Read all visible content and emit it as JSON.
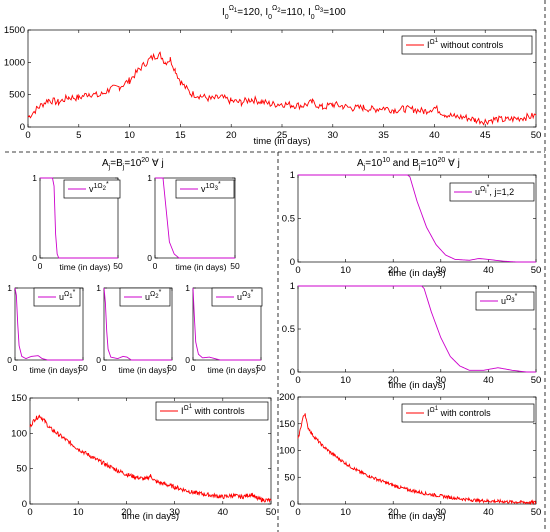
{
  "chart_data": [
    {
      "id": "top",
      "type": "line",
      "title": "I_0^Ω1=120, I_0^Ω2=110, I_0^Ω3=100",
      "xlabel": "time (in days)",
      "xlim": [
        0,
        50
      ],
      "ylim": [
        0,
        1500
      ],
      "xticks": [
        0,
        5,
        10,
        15,
        20,
        25,
        30,
        35,
        40,
        45,
        50
      ],
      "yticks": [
        0,
        500,
        1000,
        1500
      ],
      "legend": {
        "label": "I^Ω1 without controls",
        "position": "top-right"
      },
      "series": [
        {
          "color": "#ff0000",
          "noise": 55,
          "points": [
            [
              0,
              150
            ],
            [
              1,
              300
            ],
            [
              2,
              420
            ],
            [
              3,
              380
            ],
            [
              4,
              460
            ],
            [
              5,
              450
            ],
            [
              6,
              520
            ],
            [
              7,
              480
            ],
            [
              8,
              580
            ],
            [
              9,
              620
            ],
            [
              10,
              720
            ],
            [
              11,
              900
            ],
            [
              12,
              1050
            ],
            [
              12.5,
              1100
            ],
            [
              13,
              1120
            ],
            [
              13.5,
              1000
            ],
            [
              14,
              1050
            ],
            [
              14.5,
              880
            ],
            [
              15,
              700
            ],
            [
              16,
              520
            ],
            [
              17,
              480
            ],
            [
              18,
              430
            ],
            [
              19,
              460
            ],
            [
              20,
              400
            ],
            [
              21,
              380
            ],
            [
              22,
              430
            ],
            [
              23,
              390
            ],
            [
              24,
              350
            ],
            [
              25,
              360
            ],
            [
              26,
              340
            ],
            [
              27,
              330
            ],
            [
              28,
              380
            ],
            [
              29,
              300
            ],
            [
              30,
              350
            ],
            [
              31,
              320
            ],
            [
              32,
              290
            ],
            [
              33,
              300
            ],
            [
              34,
              270
            ],
            [
              35,
              300
            ],
            [
              36,
              260
            ],
            [
              37,
              280
            ],
            [
              38,
              270
            ],
            [
              39,
              240
            ],
            [
              40,
              300
            ],
            [
              41,
              200
            ],
            [
              42,
              160
            ],
            [
              43,
              150
            ],
            [
              44,
              110
            ],
            [
              45,
              90
            ],
            [
              46,
              120
            ],
            [
              47,
              110
            ],
            [
              48,
              130
            ],
            [
              49,
              150
            ],
            [
              50,
              180
            ]
          ]
        }
      ]
    },
    {
      "id": "v2",
      "type": "line",
      "xlabel": "time (in days)",
      "xlim": [
        0,
        50
      ],
      "ylim": [
        0,
        1
      ],
      "xticks": [
        0,
        50
      ],
      "yticks": [
        0,
        1
      ],
      "legend": {
        "label": "v^1Ω2*"
      },
      "series": [
        {
          "color": "#cc00cc",
          "noise": 0,
          "points": [
            [
              0,
              1
            ],
            [
              8,
              1
            ],
            [
              9,
              0.9
            ],
            [
              10,
              0.3
            ],
            [
              11,
              0.05
            ],
            [
              12,
              0
            ],
            [
              50,
              0
            ]
          ]
        }
      ]
    },
    {
      "id": "v3",
      "type": "line",
      "xlabel": "time (in days)",
      "xlim": [
        0,
        50
      ],
      "ylim": [
        0,
        1
      ],
      "xticks": [
        0,
        50
      ],
      "yticks": [
        0,
        1
      ],
      "legend": {
        "label": "v^1Ω3*"
      },
      "series": [
        {
          "color": "#cc00cc",
          "noise": 0,
          "points": [
            [
              0,
              1
            ],
            [
              5,
              1
            ],
            [
              7,
              0.6
            ],
            [
              9,
              0.2
            ],
            [
              12,
              0.05
            ],
            [
              15,
              0
            ],
            [
              50,
              0
            ]
          ]
        }
      ]
    },
    {
      "id": "u1",
      "type": "line",
      "xlabel": "time (in days)",
      "xlim": [
        0,
        50
      ],
      "ylim": [
        0,
        1
      ],
      "xticks": [
        0,
        50
      ],
      "yticks": [
        0,
        1
      ],
      "legend": {
        "label": "u^Ω1*"
      },
      "series": [
        {
          "color": "#cc00cc",
          "noise": 0,
          "points": [
            [
              0,
              1
            ],
            [
              1,
              0.9
            ],
            [
              2,
              0.5
            ],
            [
              3,
              0.2
            ],
            [
              5,
              0.05
            ],
            [
              8,
              0.02
            ],
            [
              12,
              0.05
            ],
            [
              17,
              0.06
            ],
            [
              20,
              0.02
            ],
            [
              24,
              0
            ],
            [
              50,
              0
            ]
          ]
        }
      ]
    },
    {
      "id": "u2",
      "type": "line",
      "xlabel": "time (in days)",
      "xlim": [
        0,
        50
      ],
      "ylim": [
        0,
        1
      ],
      "xticks": [
        0,
        50
      ],
      "yticks": [
        0,
        1
      ],
      "legend": {
        "label": "u^Ω2*"
      },
      "series": [
        {
          "color": "#cc00cc",
          "noise": 0,
          "points": [
            [
              0,
              1
            ],
            [
              1,
              0.8
            ],
            [
              2,
              0.4
            ],
            [
              3,
              0.15
            ],
            [
              5,
              0.04
            ],
            [
              10,
              0.02
            ],
            [
              14,
              0.05
            ],
            [
              17,
              0.04
            ],
            [
              20,
              0
            ],
            [
              50,
              0
            ]
          ]
        }
      ]
    },
    {
      "id": "u3",
      "type": "line",
      "xlabel": "time (in days)",
      "xlim": [
        0,
        50
      ],
      "ylim": [
        0,
        1
      ],
      "xticks": [
        0,
        50
      ],
      "yticks": [
        0,
        1
      ],
      "legend": {
        "label": "u^Ω3*"
      },
      "series": [
        {
          "color": "#cc00cc",
          "noise": 0,
          "points": [
            [
              0,
              1
            ],
            [
              1,
              0.6
            ],
            [
              2,
              0.25
            ],
            [
              4,
              0.08
            ],
            [
              7,
              0.03
            ],
            [
              12,
              0.04
            ],
            [
              16,
              0.02
            ],
            [
              20,
              0
            ],
            [
              50,
              0
            ]
          ]
        }
      ]
    },
    {
      "id": "ur1",
      "type": "line",
      "xlabel": "time (in days)",
      "xlim": [
        0,
        50
      ],
      "ylim": [
        0,
        1
      ],
      "xticks": [
        0,
        10,
        20,
        30,
        40,
        50
      ],
      "yticks": [
        0,
        0.5,
        1
      ],
      "legend": {
        "label": "u^Ωi*, j=1,2"
      },
      "series": [
        {
          "color": "#cc00cc",
          "noise": 0,
          "points": [
            [
              0,
              1
            ],
            [
              23,
              1
            ],
            [
              23.5,
              0.98
            ],
            [
              25,
              0.7
            ],
            [
              27,
              0.4
            ],
            [
              29,
              0.2
            ],
            [
              31,
              0.08
            ],
            [
              33,
              0.03
            ],
            [
              36,
              0.02
            ],
            [
              38,
              0.04
            ],
            [
              40,
              0.03
            ],
            [
              43,
              0.01
            ],
            [
              46,
              0
            ],
            [
              50,
              0
            ]
          ]
        }
      ]
    },
    {
      "id": "ur2",
      "type": "line",
      "xlabel": "time (in days)",
      "xlim": [
        0,
        50
      ],
      "ylim": [
        0,
        1
      ],
      "xticks": [
        0,
        10,
        20,
        30,
        40,
        50
      ],
      "yticks": [
        0,
        0.5,
        1
      ],
      "legend": {
        "label": "u^Ω3*"
      },
      "series": [
        {
          "color": "#cc00cc",
          "noise": 0,
          "points": [
            [
              0,
              1
            ],
            [
              26,
              1
            ],
            [
              26.5,
              0.97
            ],
            [
              28,
              0.7
            ],
            [
              30,
              0.4
            ],
            [
              32,
              0.18
            ],
            [
              34,
              0.07
            ],
            [
              36,
              0.02
            ],
            [
              39,
              0.02
            ],
            [
              42,
              0.05
            ],
            [
              45,
              0.02
            ],
            [
              48,
              0
            ],
            [
              50,
              0
            ]
          ]
        }
      ]
    },
    {
      "id": "bl",
      "type": "line",
      "xlabel": "time (in days)",
      "xlim": [
        0,
        50
      ],
      "ylim": [
        0,
        150
      ],
      "xticks": [
        0,
        10,
        20,
        30,
        40,
        50
      ],
      "yticks": [
        0,
        50,
        100,
        150
      ],
      "legend": {
        "label": "I^Ω1 with controls"
      },
      "series": [
        {
          "color": "#ff0000",
          "noise": 3,
          "points": [
            [
              0,
              110
            ],
            [
              1,
              120
            ],
            [
              2,
              125
            ],
            [
              3,
              118
            ],
            [
              4,
              108
            ],
            [
              6,
              98
            ],
            [
              8,
              88
            ],
            [
              10,
              78
            ],
            [
              12,
              70
            ],
            [
              14,
              62
            ],
            [
              16,
              55
            ],
            [
              18,
              48
            ],
            [
              20,
              42
            ],
            [
              22,
              38
            ],
            [
              24,
              35
            ],
            [
              25,
              40
            ],
            [
              26,
              32
            ],
            [
              28,
              28
            ],
            [
              30,
              24
            ],
            [
              32,
              20
            ],
            [
              34,
              16
            ],
            [
              36,
              14
            ],
            [
              38,
              12
            ],
            [
              40,
              10
            ],
            [
              42,
              12
            ],
            [
              44,
              10
            ],
            [
              46,
              14
            ],
            [
              47,
              8
            ],
            [
              48,
              6
            ],
            [
              50,
              5
            ]
          ]
        }
      ]
    },
    {
      "id": "br",
      "type": "line",
      "xlabel": "time (in days)",
      "xlim": [
        0,
        50
      ],
      "ylim": [
        0,
        200
      ],
      "xticks": [
        0,
        10,
        20,
        30,
        40,
        50
      ],
      "yticks": [
        0,
        50,
        100,
        150,
        200
      ],
      "legend": {
        "label": "I^Ω1 with controls"
      },
      "series": [
        {
          "color": "#ff0000",
          "noise": 3,
          "points": [
            [
              0,
              120
            ],
            [
              1,
              160
            ],
            [
              1.5,
              170
            ],
            [
              2,
              145
            ],
            [
              3,
              130
            ],
            [
              5,
              110
            ],
            [
              7,
              95
            ],
            [
              9,
              82
            ],
            [
              11,
              70
            ],
            [
              13,
              60
            ],
            [
              15,
              52
            ],
            [
              17,
              45
            ],
            [
              19,
              38
            ],
            [
              21,
              32
            ],
            [
              23,
              27
            ],
            [
              25,
              23
            ],
            [
              27,
              19
            ],
            [
              30,
              15
            ],
            [
              33,
              11
            ],
            [
              36,
              8
            ],
            [
              39,
              6
            ],
            [
              42,
              5
            ],
            [
              45,
              4
            ],
            [
              48,
              3
            ],
            [
              50,
              3
            ]
          ]
        }
      ]
    }
  ],
  "labels": {
    "top_title": {
      "pre": "I",
      "sup1": "Ω",
      "sub1": "0",
      "subsub1": "1",
      "rest1": "=120, I",
      "rest2": "=110, I",
      "rest3": "=100"
    },
    "mid_left_title": {
      "a": "A",
      "j1": "j",
      "b": "=B",
      "j2": "j",
      "c": "=10",
      "exp": "20",
      "d": " ∀ j"
    },
    "mid_right_title": {
      "a": "A",
      "j1": "j",
      "b": "=10",
      "exp1": "10",
      "c": " and B",
      "j2": "j",
      "d": "=10",
      "exp2": "20",
      "e": " ∀ j"
    }
  }
}
